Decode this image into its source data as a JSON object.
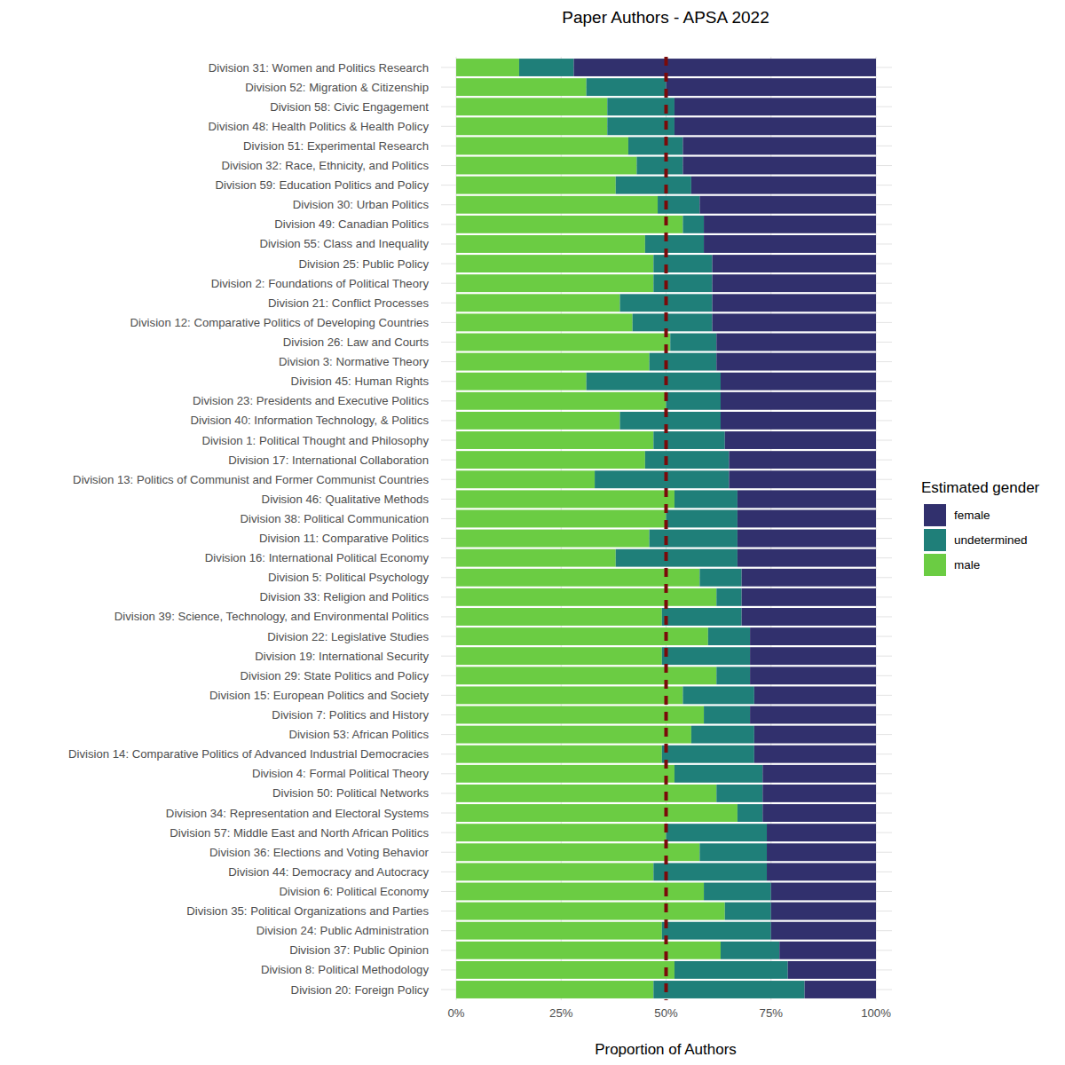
{
  "chart_data": {
    "type": "bar",
    "title": "Paper Authors - APSA 2022",
    "x_label": "Proportion of Authors",
    "legend_title": "Estimated gender",
    "orientation": "horizontal",
    "stacked": true,
    "grid": true,
    "legend": "right",
    "xlim": [
      0,
      100
    ],
    "xticks": [
      {
        "value": 0,
        "label": "0%"
      },
      {
        "value": 25,
        "label": "25%"
      },
      {
        "value": 50,
        "label": "50%"
      },
      {
        "value": 75,
        "label": "75%"
      },
      {
        "value": 100,
        "label": "100%"
      }
    ],
    "reference_line": 50,
    "categories": [
      "Division 31: Women and Politics Research",
      "Division 52: Migration & Citizenship",
      "Division 58: Civic Engagement",
      "Division 48: Health Politics & Health Policy",
      "Division 51: Experimental Research",
      "Division 32: Race, Ethnicity, and Politics",
      "Division 59: Education Politics and Policy",
      "Division 30: Urban Politics",
      "Division 49: Canadian Politics",
      "Division 55: Class and Inequality",
      "Division 25: Public Policy",
      "Division 2: Foundations of Political Theory",
      "Division 21: Conflict Processes",
      "Division 12: Comparative Politics of Developing Countries",
      "Division 26: Law and Courts",
      "Division 3: Normative Theory",
      "Division 45: Human Rights",
      "Division 23: Presidents and Executive Politics",
      "Division 40: Information Technology, & Politics",
      "Division 1: Political Thought and Philosophy",
      "Division 17: International Collaboration",
      "Division 13: Politics of Communist and Former Communist Countries",
      "Division 46: Qualitative Methods",
      "Division 38: Political Communication",
      "Division 11: Comparative Politics",
      "Division 16: International Political Economy",
      "Division 5: Political Psychology",
      "Division 33: Religion and Politics",
      "Division 39: Science, Technology, and Environmental Politics",
      "Division 22: Legislative Studies",
      "Division 19: International Security",
      "Division 29: State Politics and Policy",
      "Division 15: European Politics and Society",
      "Division 7: Politics and History",
      "Division 53: African Politics",
      "Division 14: Comparative Politics of Advanced Industrial Democracies",
      "Division 4: Formal Political Theory",
      "Division 50: Political Networks",
      "Division 34: Representation and Electoral Systems",
      "Division 57: Middle East and North African Politics",
      "Division 36: Elections and Voting Behavior",
      "Division 44: Democracy and Autocracy",
      "Division 6: Political Economy",
      "Division 35: Political Organizations and Parties",
      "Division 24: Public Administration",
      "Division 37: Public Opinion",
      "Division 8: Political Methodology",
      "Division 20: Foreign Policy"
    ],
    "series": [
      {
        "name": "male",
        "color": "#6bcc43",
        "values": [
          15,
          31,
          36,
          36,
          41,
          43,
          38,
          48,
          54,
          45,
          47,
          47,
          39,
          42,
          51,
          46,
          31,
          50,
          39,
          47,
          45,
          33,
          52,
          50,
          46,
          38,
          58,
          62,
          49,
          60,
          49,
          62,
          54,
          59,
          56,
          49,
          52,
          62,
          67,
          50,
          58,
          47,
          59,
          64,
          49,
          63,
          52,
          47
        ]
      },
      {
        "name": "undetermined",
        "color": "#1f7f79",
        "values": [
          13,
          19,
          16,
          16,
          13,
          11,
          18,
          10,
          5,
          14,
          14,
          14,
          22,
          19,
          11,
          16,
          32,
          13,
          24,
          17,
          20,
          32,
          15,
          17,
          21,
          29,
          10,
          6,
          19,
          10,
          21,
          8,
          17,
          11,
          15,
          22,
          21,
          11,
          6,
          24,
          16,
          27,
          16,
          11,
          26,
          14,
          27,
          36
        ]
      },
      {
        "name": "female",
        "color": "#31306d",
        "values": [
          72,
          50,
          48,
          48,
          46,
          46,
          44,
          42,
          41,
          41,
          39,
          39,
          39,
          39,
          38,
          38,
          37,
          37,
          37,
          36,
          35,
          35,
          33,
          33,
          33,
          33,
          32,
          32,
          32,
          30,
          30,
          30,
          29,
          30,
          29,
          29,
          27,
          27,
          27,
          26,
          26,
          26,
          25,
          25,
          25,
          23,
          21,
          17
        ]
      }
    ]
  }
}
